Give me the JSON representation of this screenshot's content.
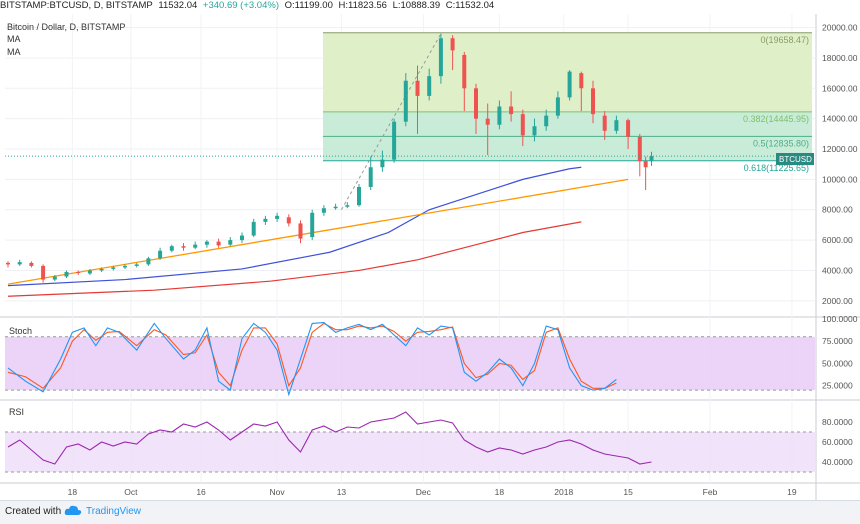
{
  "header": {
    "symbol": "BITSTAMP:BTCUSD, D, BITSTAMP",
    "last": "11532.04",
    "change": "+340.69 (+3.04%)",
    "open": "O:11199.00",
    "high": "H:11823.56",
    "low": "L:10888.39",
    "close": "C:11532.04"
  },
  "legend": {
    "title": "Bitcoin / Dollar, D, BITSTAMP",
    "ma1": "MA",
    "ma2": "MA"
  },
  "price_tag": "BTCUSD",
  "stoch_title": "Stoch",
  "rsi_title": "RSI",
  "footer": {
    "created": "Created with",
    "brand": "TradingView"
  },
  "colors": {
    "up": "#26a69a",
    "down": "#ef5350",
    "ma_fast": "#3f51d6",
    "ma_slow": "#e53935",
    "trendline": "#ff9800",
    "stoch_k": "#2196f3",
    "stoch_d": "#ff5722",
    "rsi": "#9c27b0",
    "fib_zone_top": "#dff0c8",
    "fib_zone_bottom": "#c9ecd9",
    "osc_band": "#e6c9f5"
  },
  "chart_data": [
    {
      "type": "candlestick",
      "title": "Bitcoin / Dollar, D, BITSTAMP",
      "ylim": [
        1000,
        20500
      ],
      "y_ticks": [
        "20000.00",
        "18000.00",
        "16000.00",
        "14000.00",
        "12000.00",
        "10000.00",
        "8000.00",
        "6000.00",
        "4000.00",
        "2000.00"
      ],
      "x_ticks": [
        "18",
        "Oct",
        "16",
        "Nov",
        "13",
        "Dec",
        "18",
        "2018",
        "15",
        "Feb",
        "19"
      ],
      "fibonacci": [
        {
          "label": "0(19658.47)",
          "value": 19658.47
        },
        {
          "label": "0.382(14445.95)",
          "value": 14445.95
        },
        {
          "label": "0.5(12835.80)",
          "value": 12835.8
        },
        {
          "label": "0.618(11225.65)",
          "value": 11225.65
        }
      ],
      "trendline": {
        "start": [
          0,
          3100
        ],
        "end": [
          106,
          10000
        ]
      },
      "ma_fast": [
        [
          0,
          3000
        ],
        [
          20,
          3400
        ],
        [
          40,
          4100
        ],
        [
          55,
          5200
        ],
        [
          65,
          6500
        ],
        [
          72,
          8000
        ],
        [
          80,
          9000
        ],
        [
          88,
          10000
        ],
        [
          96,
          10700
        ],
        [
          98,
          10800
        ]
      ],
      "ma_slow": [
        [
          0,
          2300
        ],
        [
          25,
          2700
        ],
        [
          45,
          3300
        ],
        [
          60,
          4000
        ],
        [
          70,
          4700
        ],
        [
          80,
          5700
        ],
        [
          88,
          6500
        ],
        [
          98,
          7200
        ]
      ],
      "candles": [
        [
          0,
          4500,
          4400,
          4600,
          4200
        ],
        [
          2,
          4400,
          4550,
          4700,
          4300
        ],
        [
          4,
          4500,
          4300,
          4600,
          4200
        ],
        [
          6,
          4300,
          3400,
          4400,
          3200
        ],
        [
          8,
          3400,
          3600,
          3700,
          3300
        ],
        [
          10,
          3600,
          3900,
          4000,
          3500
        ],
        [
          12,
          3900,
          3850,
          4000,
          3700
        ],
        [
          14,
          3800,
          4000,
          4100,
          3700
        ],
        [
          16,
          4000,
          4100,
          4200,
          3900
        ],
        [
          18,
          4100,
          4200,
          4300,
          4000
        ],
        [
          20,
          4200,
          4300,
          4400,
          4100
        ],
        [
          22,
          4300,
          4400,
          4500,
          4200
        ],
        [
          24,
          4400,
          4800,
          4900,
          4300
        ],
        [
          26,
          4800,
          5300,
          5500,
          4700
        ],
        [
          28,
          5300,
          5600,
          5700,
          5200
        ],
        [
          30,
          5600,
          5500,
          5800,
          5300
        ],
        [
          32,
          5500,
          5700,
          5900,
          5400
        ],
        [
          34,
          5700,
          5900,
          6000,
          5500
        ],
        [
          36,
          5900,
          5650,
          6100,
          5500
        ],
        [
          38,
          5700,
          6000,
          6200,
          5600
        ],
        [
          40,
          6000,
          6300,
          6500,
          5800
        ],
        [
          42,
          6300,
          7200,
          7400,
          6200
        ],
        [
          44,
          7200,
          7400,
          7600,
          7000
        ],
        [
          46,
          7400,
          7600,
          7800,
          7200
        ],
        [
          48,
          7500,
          7100,
          7700,
          6900
        ],
        [
          50,
          7100,
          6100,
          7300,
          5800
        ],
        [
          52,
          6200,
          7800,
          8000,
          6000
        ],
        [
          54,
          7800,
          8100,
          8300,
          7600
        ],
        [
          56,
          8100,
          8200,
          8400,
          8000
        ],
        [
          58,
          8200,
          8300,
          8500,
          8100
        ],
        [
          60,
          8300,
          9500,
          9700,
          8200
        ],
        [
          62,
          9500,
          10800,
          11500,
          9300
        ],
        [
          64,
          10800,
          11300,
          11900,
          10500
        ],
        [
          66,
          11300,
          13800,
          14000,
          11100
        ],
        [
          68,
          13800,
          16500,
          17000,
          13500
        ],
        [
          70,
          16500,
          15500,
          17500,
          13000
        ],
        [
          72,
          15500,
          16800,
          17300,
          15200
        ],
        [
          74,
          16800,
          19300,
          19600,
          16300
        ],
        [
          76,
          19300,
          18500,
          19500,
          17200
        ],
        [
          78,
          18200,
          16000,
          18400,
          14500
        ],
        [
          80,
          16000,
          14000,
          16300,
          13000
        ],
        [
          82,
          14000,
          13600,
          15000,
          11600
        ],
        [
          84,
          13600,
          14800,
          15200,
          13300
        ],
        [
          86,
          14800,
          14300,
          15800,
          13800
        ],
        [
          88,
          14300,
          12900,
          14600,
          12200
        ],
        [
          90,
          12900,
          13500,
          14000,
          12500
        ],
        [
          92,
          13500,
          14200,
          14600,
          13200
        ],
        [
          94,
          14200,
          15400,
          15800,
          14000
        ],
        [
          96,
          15400,
          17100,
          17200,
          15200
        ],
        [
          98,
          17000,
          16000,
          17100,
          14500
        ],
        [
          100,
          16000,
          14300,
          16500,
          13700
        ],
        [
          102,
          14200,
          13200,
          14500,
          12600
        ],
        [
          104,
          13200,
          13900,
          14200,
          13000
        ],
        [
          106,
          13900,
          12800,
          14000,
          12000
        ],
        [
          108,
          12800,
          11200,
          13000,
          10200
        ],
        [
          109,
          11200,
          10800,
          11500,
          9300
        ],
        [
          110,
          11199,
          11532,
          11823,
          10888
        ]
      ]
    },
    {
      "type": "line",
      "title": "Stoch",
      "ylim": [
        10,
        100
      ],
      "y_ticks": [
        "100.0000",
        "75.0000",
        "50.0000",
        "25.0000"
      ],
      "series": [
        {
          "name": "%K",
          "values": [
            [
              0,
              45
            ],
            [
              3,
              30
            ],
            [
              6,
              18
            ],
            [
              9,
              55
            ],
            [
              11,
              85
            ],
            [
              13,
              90
            ],
            [
              15,
              70
            ],
            [
              17,
              90
            ],
            [
              19,
              85
            ],
            [
              22,
              65
            ],
            [
              25,
              95
            ],
            [
              27,
              78
            ],
            [
              30,
              55
            ],
            [
              32,
              65
            ],
            [
              34,
              90
            ],
            [
              36,
              30
            ],
            [
              38,
              20
            ],
            [
              40,
              78
            ],
            [
              42,
              95
            ],
            [
              44,
              85
            ],
            [
              46,
              65
            ],
            [
              48,
              15
            ],
            [
              50,
              55
            ],
            [
              52,
              95
            ],
            [
              54,
              96
            ],
            [
              56,
              85
            ],
            [
              58,
              90
            ],
            [
              60,
              94
            ],
            [
              62,
              88
            ],
            [
              64,
              94
            ],
            [
              66,
              82
            ],
            [
              68,
              70
            ],
            [
              70,
              90
            ],
            [
              72,
              82
            ],
            [
              74,
              92
            ],
            [
              76,
              90
            ],
            [
              78,
              40
            ],
            [
              80,
              30
            ],
            [
              82,
              40
            ],
            [
              84,
              55
            ],
            [
              86,
              45
            ],
            [
              88,
              25
            ],
            [
              90,
              50
            ],
            [
              92,
              92
            ],
            [
              94,
              88
            ],
            [
              96,
              45
            ],
            [
              98,
              25
            ],
            [
              100,
              20
            ],
            [
              102,
              22
            ],
            [
              104,
              32
            ]
          ]
        },
        {
          "name": "%D",
          "values": [
            [
              0,
              40
            ],
            [
              3,
              35
            ],
            [
              6,
              22
            ],
            [
              9,
              45
            ],
            [
              11,
              75
            ],
            [
              13,
              88
            ],
            [
              15,
              76
            ],
            [
              17,
              85
            ],
            [
              19,
              86
            ],
            [
              22,
              70
            ],
            [
              25,
              88
            ],
            [
              27,
              82
            ],
            [
              30,
              60
            ],
            [
              32,
              62
            ],
            [
              34,
              82
            ],
            [
              36,
              40
            ],
            [
              38,
              25
            ],
            [
              40,
              65
            ],
            [
              42,
              90
            ],
            [
              44,
              90
            ],
            [
              46,
              72
            ],
            [
              48,
              25
            ],
            [
              50,
              45
            ],
            [
              52,
              85
            ],
            [
              54,
              95
            ],
            [
              56,
              88
            ],
            [
              58,
              88
            ],
            [
              60,
              92
            ],
            [
              62,
              90
            ],
            [
              64,
              92
            ],
            [
              66,
              86
            ],
            [
              68,
              75
            ],
            [
              70,
              85
            ],
            [
              72,
              86
            ],
            [
              74,
              88
            ],
            [
              76,
              91
            ],
            [
              78,
              50
            ],
            [
              80,
              34
            ],
            [
              82,
              38
            ],
            [
              84,
              50
            ],
            [
              86,
              48
            ],
            [
              88,
              32
            ],
            [
              90,
              42
            ],
            [
              92,
              85
            ],
            [
              94,
              90
            ],
            [
              96,
              55
            ],
            [
              98,
              30
            ],
            [
              100,
              22
            ],
            [
              102,
              22
            ],
            [
              104,
              28
            ]
          ]
        }
      ]
    },
    {
      "type": "line",
      "title": "RSI",
      "ylim": [
        20,
        100
      ],
      "y_ticks": [
        "80.0000",
        "60.0000",
        "40.0000"
      ],
      "series": [
        {
          "name": "RSI",
          "values": [
            [
              0,
              55
            ],
            [
              2,
              62
            ],
            [
              4,
              52
            ],
            [
              6,
              42
            ],
            [
              8,
              38
            ],
            [
              10,
              55
            ],
            [
              12,
              58
            ],
            [
              14,
              52
            ],
            [
              16,
              60
            ],
            [
              18,
              56
            ],
            [
              20,
              60
            ],
            [
              22,
              58
            ],
            [
              24,
              68
            ],
            [
              26,
              72
            ],
            [
              28,
              70
            ],
            [
              30,
              78
            ],
            [
              32,
              75
            ],
            [
              34,
              80
            ],
            [
              36,
              72
            ],
            [
              38,
              62
            ],
            [
              40,
              70
            ],
            [
              42,
              78
            ],
            [
              44,
              76
            ],
            [
              46,
              80
            ],
            [
              48,
              62
            ],
            [
              50,
              50
            ],
            [
              52,
              72
            ],
            [
              54,
              76
            ],
            [
              56,
              70
            ],
            [
              58,
              75
            ],
            [
              60,
              74
            ],
            [
              62,
              80
            ],
            [
              64,
              82
            ],
            [
              66,
              84
            ],
            [
              68,
              90
            ],
            [
              70,
              78
            ],
            [
              72,
              80
            ],
            [
              74,
              82
            ],
            [
              76,
              79
            ],
            [
              78,
              62
            ],
            [
              80,
              55
            ],
            [
              82,
              50
            ],
            [
              84,
              54
            ],
            [
              86,
              52
            ],
            [
              88,
              48
            ],
            [
              90,
              52
            ],
            [
              92,
              55
            ],
            [
              94,
              60
            ],
            [
              96,
              62
            ],
            [
              98,
              58
            ],
            [
              100,
              52
            ],
            [
              102,
              48
            ],
            [
              104,
              46
            ],
            [
              106,
              44
            ],
            [
              108,
              38
            ],
            [
              110,
              40
            ]
          ]
        }
      ]
    }
  ]
}
